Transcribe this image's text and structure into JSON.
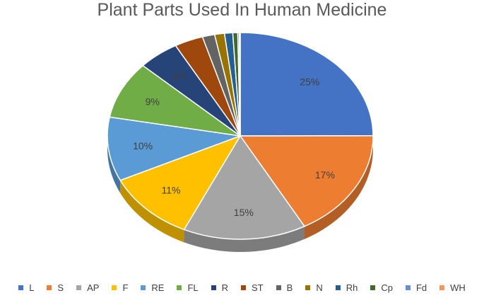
{
  "chart_data": {
    "type": "pie",
    "title": "Plant Parts Used In Human Medicine",
    "categories": [
      "L",
      "S",
      "AP",
      "F",
      "RE",
      "FL",
      "R",
      "ST",
      "B",
      "N",
      "Rh",
      "Cp",
      "Fd",
      "WH"
    ],
    "values": [
      25,
      17,
      15,
      11,
      10,
      9,
      5,
      3.5,
      1.5,
      1.2,
      1,
      0.6,
      0.2,
      0.1
    ],
    "data_labels": [
      "25%",
      "17%",
      "15%",
      "11%",
      "10%",
      "9%",
      "5%",
      "",
      "",
      "",
      "",
      "",
      "",
      ""
    ],
    "colors": [
      "#4472C4",
      "#ED7D31",
      "#A5A5A5",
      "#FFC000",
      "#5B9BD5",
      "#70AD47",
      "#264478",
      "#9E480E",
      "#636363",
      "#997300",
      "#255E91",
      "#43682B",
      "#698ED0",
      "#F1975A"
    ],
    "legend_position": "bottom",
    "style": "3d-tilted"
  }
}
